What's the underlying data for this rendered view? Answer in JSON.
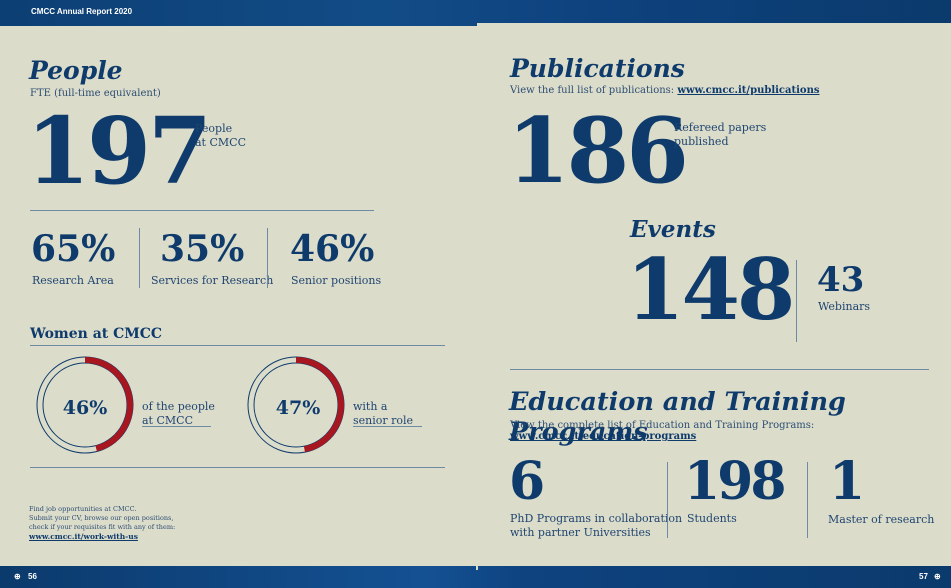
{
  "header": {
    "title": "CMCC Annual Report 2020"
  },
  "footer": {
    "page_left": "56",
    "page_right": "57",
    "bullet": "⊕"
  },
  "people": {
    "title": "People",
    "subtitle": "FTE  (full-time equivalent)",
    "count": "197",
    "count_label_1": "People",
    "count_label_2": "at CMCC",
    "stats": [
      {
        "value": "65%",
        "label": "Research Area"
      },
      {
        "value": "35%",
        "label": "Services for Research"
      },
      {
        "value": "46%",
        "label": "Senior positions"
      }
    ]
  },
  "women": {
    "title": "Women at CMCC",
    "items": [
      {
        "value": "46%",
        "fraction": 0.46,
        "label_1": "of the people",
        "label_2": "at CMCC"
      },
      {
        "value": "47%",
        "fraction": 0.47,
        "label_1": "with a",
        "label_2": "senior role"
      }
    ],
    "colors": {
      "ring": "#0e3b6b",
      "fill": "#a8171f"
    }
  },
  "jobs": {
    "line1": "Find job opportunities at CMCC.",
    "line2": "Submit your CV, browse our open positions,",
    "line3": "check if your requisites fit with any of them:",
    "link": "www.cmcc.it/work-with-us"
  },
  "publications": {
    "title": "Publications",
    "subtitle": "View the full list of publications:",
    "link": "www.cmcc.it/publications",
    "count": "186",
    "label_1": "Refereed papers",
    "label_2": "published"
  },
  "events": {
    "title": "Events",
    "count": "148",
    "webinars_count": "43",
    "webinars_label": "Webinars"
  },
  "education": {
    "title": "Education and Training Programs",
    "subtitle": "View the complete list of Education and Training Programs:",
    "link": "www.cmcc.it/education-programs",
    "stats": [
      {
        "value": "6",
        "label_1": "PhD Programs in collaboration",
        "label_2": "with partner Universities"
      },
      {
        "value": "198",
        "label_1": "Students",
        "label_2": ""
      },
      {
        "value": "1",
        "label_1": "Master of research",
        "label_2": ""
      }
    ]
  }
}
